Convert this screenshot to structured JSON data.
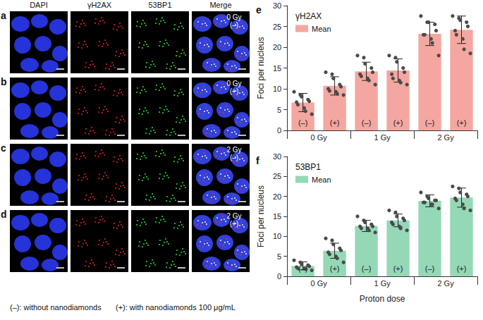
{
  "chart_data": [
    {
      "type": "bar",
      "panel_label": "e",
      "title": "γH2AX",
      "ylabel": "Foci per nucleus",
      "categories": [
        "(–)",
        "(+)",
        "(–)",
        "(+)",
        "(–)",
        "(+)"
      ],
      "groups": [
        "0 Gy",
        "1 Gy",
        "2 Gy"
      ],
      "series": [
        {
          "name": "Mean",
          "color": "#f4a7a0",
          "values": [
            6.7,
            10.7,
            14.2,
            14.4,
            23.2,
            24.2
          ],
          "error": [
            2.2,
            2.2,
            2.2,
            2.8,
            2.8,
            3.3
          ],
          "points": [
            [
              9.3,
              8.5,
              8.1,
              7.4,
              7,
              6.8,
              6.2,
              5.4,
              4.6,
              3.9
            ],
            [
              14,
              13.5,
              12.5,
              11,
              10.5,
              10,
              9.5,
              9.3,
              8.8,
              8.5
            ],
            [
              18,
              17.5,
              16,
              15,
              14,
              13.5,
              13,
              12.5,
              12,
              11
            ],
            [
              18,
              17.5,
              16.5,
              15,
              14,
              13.5,
              12.5,
              12,
              11.5,
              11
            ],
            [
              27.5,
              26,
              26,
              25.5,
              24,
              23,
              23,
              22,
              21,
              18
            ],
            [
              27.5,
              27,
              26.5,
              26,
              25,
              24,
              23,
              22,
              19.5,
              18.5
            ]
          ]
        }
      ],
      "ylim": [
        0,
        30
      ],
      "yticks": [
        0,
        5,
        10,
        15,
        20,
        25,
        30
      ],
      "grid": false,
      "legend": "top-left"
    },
    {
      "type": "bar",
      "panel_label": "f",
      "title": "53BP1",
      "ylabel": "Foci per nucleus",
      "xlabel": "Proton dose",
      "categories": [
        "(–)",
        "(+)",
        "(–)",
        "(+)",
        "(–)",
        "(+)"
      ],
      "groups": [
        "0 Gy",
        "1 Gy",
        "2 Gy"
      ],
      "series": [
        {
          "name": "Mean",
          "color": "#95d8b6",
          "values": [
            2.6,
            6.4,
            12.6,
            14.0,
            18.9,
            19.7
          ],
          "error": [
            1.0,
            1.9,
            1.4,
            1.6,
            1.5,
            2.4
          ],
          "points": [
            [
              4,
              3.5,
              3,
              2.8,
              2.5,
              2.3,
              2,
              2,
              1.8,
              1.5
            ],
            [
              9.5,
              9,
              8,
              7,
              6.5,
              6,
              5.5,
              5,
              4.5,
              3.5
            ],
            [
              15,
              14,
              13.5,
              13,
              12.5,
              12.5,
              12,
              12,
              11.5,
              11
            ],
            [
              16.5,
              16,
              15,
              14.5,
              14,
              13.5,
              13,
              12.5,
              12,
              11.5
            ],
            [
              21,
              20,
              19.5,
              19,
              19,
              18.5,
              18.5,
              18,
              18,
              17
            ],
            [
              22.5,
              22,
              21,
              20.5,
              20,
              19.5,
              19,
              18,
              17,
              16.5
            ]
          ]
        }
      ],
      "ylim": [
        0,
        30
      ],
      "yticks": [
        0,
        5,
        10,
        15,
        20,
        25,
        30
      ],
      "grid": false,
      "legend": "top-left"
    }
  ],
  "panels": {
    "columns": [
      "DAPI",
      "γH2AX",
      "53BP1",
      "Merge"
    ],
    "colors": [
      "#2b3cff",
      "#ff2a2a",
      "#2aff3a",
      "#3b4cff"
    ],
    "rows": [
      {
        "label": "a",
        "dose": "0 Gy",
        "treatment": "(–)"
      },
      {
        "label": "b",
        "dose": "0 Gy",
        "treatment": "(+)"
      },
      {
        "label": "c",
        "dose": "2 Gy",
        "treatment": "(–)"
      },
      {
        "label": "d",
        "dose": "2 Gy",
        "treatment": "(+)"
      }
    ],
    "footnote": [
      "(–): without nanodiamonds",
      "(+): with nanodiamonds 100 μg/mL"
    ]
  }
}
